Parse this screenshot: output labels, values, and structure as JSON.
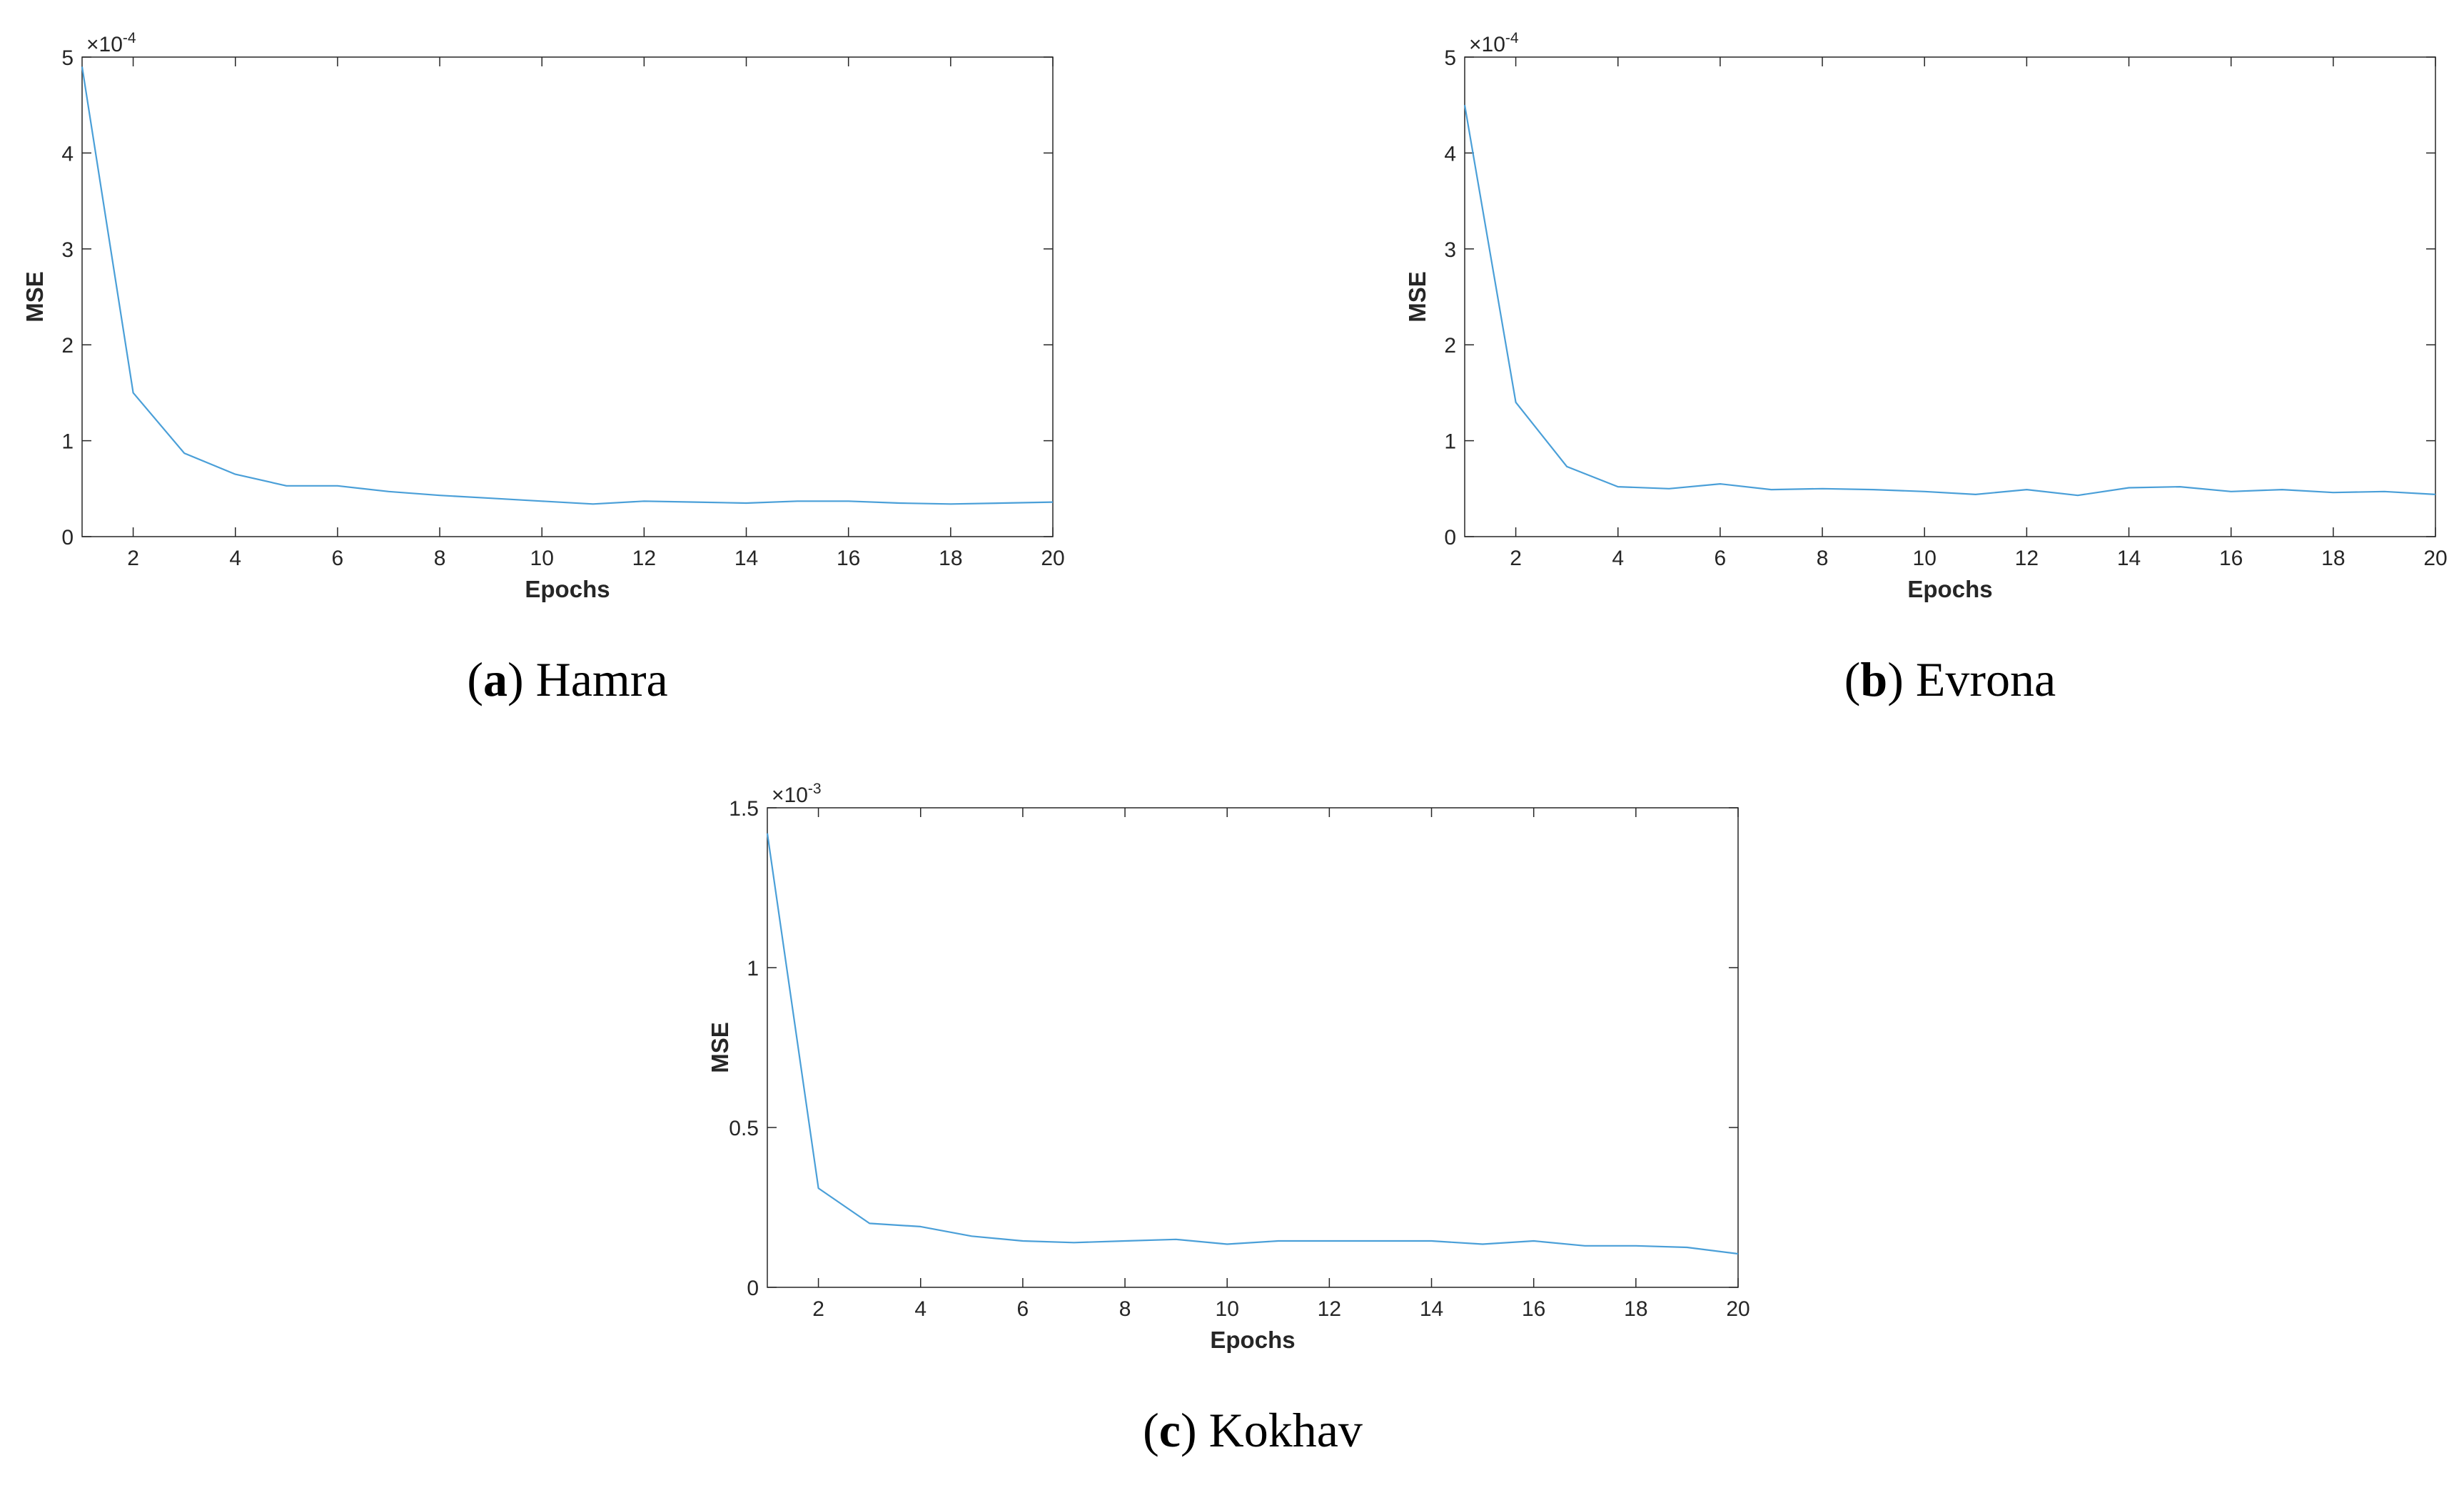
{
  "chart_data": [
    {
      "type": "line",
      "caption": {
        "open": "(",
        "letter": "a",
        "close": ")",
        "text": "Hamra"
      },
      "xlabel": "Epochs",
      "ylabel": "MSE",
      "y_scale_base": "×10",
      "y_scale_exp": "-4",
      "xlim": [
        1,
        20
      ],
      "ylim": [
        0,
        5
      ],
      "xticks": [
        2,
        4,
        6,
        8,
        10,
        12,
        14,
        16,
        18,
        20
      ],
      "yticks": [
        0,
        1,
        2,
        3,
        4,
        5
      ],
      "ytick_labels": [
        "0",
        "1",
        "2",
        "3",
        "4",
        "5"
      ],
      "grid": false,
      "line_color": "#4a9fd8",
      "series": [
        {
          "x": [
            1,
            2,
            3,
            4,
            5,
            6,
            7,
            8,
            9,
            10,
            11,
            12,
            13,
            14,
            15,
            16,
            17,
            18,
            19,
            20
          ],
          "values": [
            4.9,
            1.5,
            0.87,
            0.65,
            0.53,
            0.53,
            0.47,
            0.43,
            0.4,
            0.37,
            0.34,
            0.37,
            0.36,
            0.35,
            0.37,
            0.37,
            0.35,
            0.34,
            0.35,
            0.36
          ]
        }
      ]
    },
    {
      "type": "line",
      "caption": {
        "open": "(",
        "letter": "b",
        "close": ")",
        "text": "Evrona"
      },
      "xlabel": "Epochs",
      "ylabel": "MSE",
      "y_scale_base": "×10",
      "y_scale_exp": "-4",
      "xlim": [
        1,
        20
      ],
      "ylim": [
        0,
        5
      ],
      "xticks": [
        2,
        4,
        6,
        8,
        10,
        12,
        14,
        16,
        18,
        20
      ],
      "yticks": [
        0,
        1,
        2,
        3,
        4,
        5
      ],
      "ytick_labels": [
        "0",
        "1",
        "2",
        "3",
        "4",
        "5"
      ],
      "grid": false,
      "line_color": "#4a9fd8",
      "series": [
        {
          "x": [
            1,
            2,
            3,
            4,
            5,
            6,
            7,
            8,
            9,
            10,
            11,
            12,
            13,
            14,
            15,
            16,
            17,
            18,
            19,
            20
          ],
          "values": [
            4.5,
            1.4,
            0.73,
            0.52,
            0.5,
            0.55,
            0.49,
            0.5,
            0.49,
            0.47,
            0.44,
            0.49,
            0.43,
            0.51,
            0.52,
            0.47,
            0.49,
            0.46,
            0.47,
            0.44
          ]
        }
      ]
    },
    {
      "type": "line",
      "caption": {
        "open": "(",
        "letter": "c",
        "close": ")",
        "text": "Kokhav"
      },
      "xlabel": "Epochs",
      "ylabel": "MSE",
      "y_scale_base": "×10",
      "y_scale_exp": "-3",
      "xlim": [
        1,
        20
      ],
      "ylim": [
        0,
        1.5
      ],
      "xticks": [
        2,
        4,
        6,
        8,
        10,
        12,
        14,
        16,
        18,
        20
      ],
      "yticks": [
        0,
        0.5,
        1,
        1.5
      ],
      "ytick_labels": [
        "0",
        "0.5",
        "1",
        "1.5"
      ],
      "grid": false,
      "line_color": "#4a9fd8",
      "series": [
        {
          "x": [
            1,
            2,
            3,
            4,
            5,
            6,
            7,
            8,
            9,
            10,
            11,
            12,
            13,
            14,
            15,
            16,
            17,
            18,
            19,
            20
          ],
          "values": [
            1.42,
            0.31,
            0.2,
            0.19,
            0.16,
            0.145,
            0.14,
            0.145,
            0.15,
            0.135,
            0.145,
            0.145,
            0.145,
            0.145,
            0.135,
            0.145,
            0.13,
            0.13,
            0.125,
            0.105
          ]
        }
      ]
    }
  ]
}
